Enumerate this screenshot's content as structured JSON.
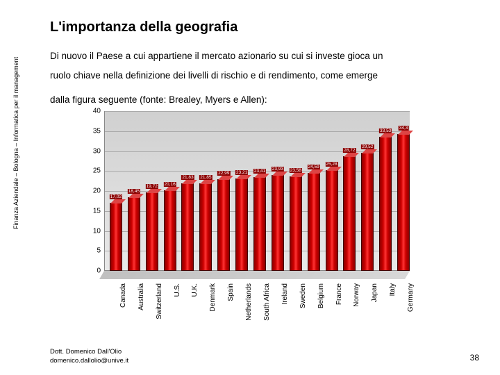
{
  "title": "L'importanza della geografia",
  "paragraph_line1": "Di nuovo il Paese a cui appartiene il mercato azionario su cui si investe gioca un",
  "paragraph_line2": "ruolo chiave nella definizione dei livelli di rischio e di rendimento, come emerge",
  "paragraph_line3": "dalla figura seguente (fonte: Brealey, Myers e Allen):",
  "sidebar_text": "Finanza Aziendale – Bologna – Informatica per il management",
  "footer_line1": "Dott. Domenico Dall'Olio",
  "footer_line2": "domenico.dallolio@unive.it",
  "page_number": "38",
  "chart": {
    "type": "bar",
    "categories": [
      "Canada",
      "Australia",
      "Switzerland",
      "U.S.",
      "U.K.",
      "Denmark",
      "Spain",
      "Netherlands",
      "South Africa",
      "Ireland",
      "Sweden",
      "Belgium",
      "France",
      "Norway",
      "Japan",
      "Italy",
      "Germany"
    ],
    "values": [
      17.02,
      18.45,
      19.72,
      20.16,
      21.83,
      21.85,
      22.99,
      23.21,
      23.41,
      23.93,
      23.58,
      24.59,
      25.28,
      28.72,
      29.52,
      33.53,
      34.3
    ],
    "value_labels": [
      "17,02",
      "18,45",
      "19,72",
      "20,16",
      "21,83",
      "21,85",
      "22,99",
      "23,21",
      "23,41",
      "23,93",
      "23,58",
      "24,59",
      "25,28",
      "28,72",
      "29,52",
      "33,53",
      "34,3"
    ],
    "bar_color_gradient": [
      "#8B0000",
      "#CC0000",
      "#FF3333"
    ],
    "ylim": [
      0,
      40
    ],
    "ytick_step": 5,
    "yticks": [
      0,
      5,
      10,
      15,
      20,
      25,
      30,
      35,
      40
    ],
    "background_gradient": [
      "#d0d0d0",
      "#e8e8e8"
    ],
    "grid_color": "#aaaaaa",
    "label_fontsize": 10,
    "value_label_fontsize": 6.5
  }
}
